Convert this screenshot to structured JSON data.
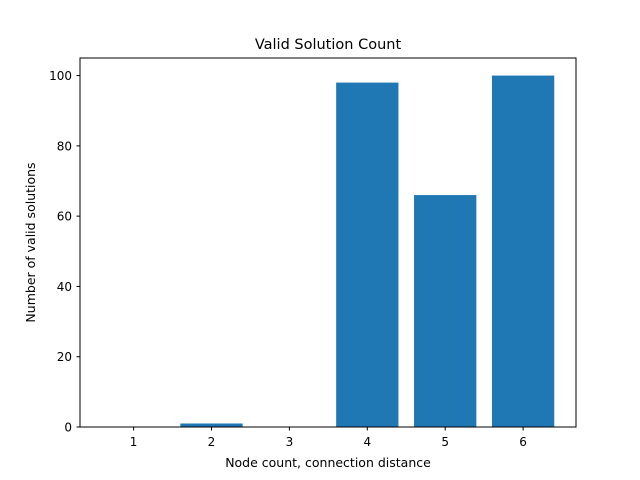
{
  "chart_data": {
    "type": "bar",
    "title": "Valid Solution Count",
    "xlabel": "Node count, connection distance",
    "ylabel": "Number of valid solutions",
    "categories": [
      "1",
      "2",
      "3",
      "4",
      "5",
      "6"
    ],
    "values": [
      0,
      1,
      0,
      98,
      66,
      100
    ],
    "ylim": [
      0,
      105
    ],
    "yticks": [
      0,
      20,
      40,
      60,
      80,
      100
    ],
    "grid": false,
    "colors": {
      "bar": "#1f77b4"
    }
  }
}
